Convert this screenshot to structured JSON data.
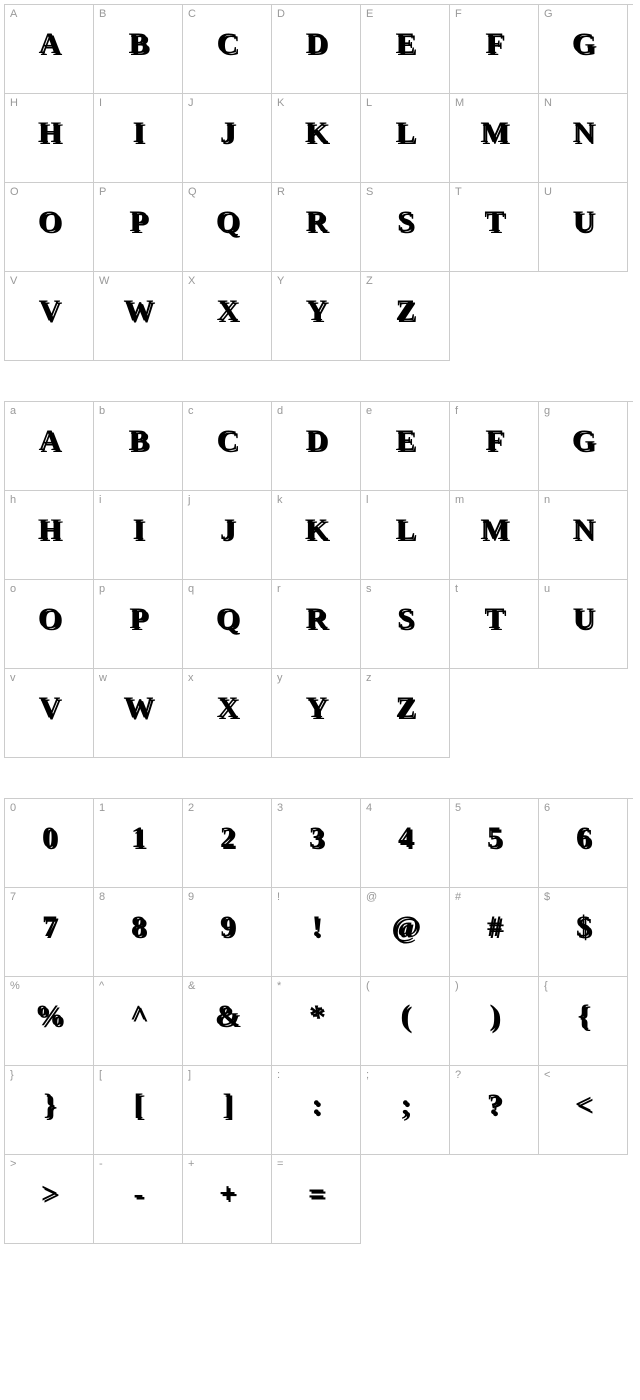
{
  "layout": {
    "cols": 7,
    "cell_size": 89,
    "border_color": "#cccccc",
    "label_color": "#999999",
    "label_fontsize": 11,
    "glyph_fontsize": 30,
    "glyph_color": "#000000",
    "background": "#ffffff"
  },
  "sections": [
    {
      "name": "uppercase",
      "cells": [
        {
          "label": "A",
          "glyph": "A"
        },
        {
          "label": "B",
          "glyph": "B"
        },
        {
          "label": "C",
          "glyph": "C"
        },
        {
          "label": "D",
          "glyph": "D"
        },
        {
          "label": "E",
          "glyph": "E"
        },
        {
          "label": "F",
          "glyph": "F"
        },
        {
          "label": "G",
          "glyph": "G"
        },
        {
          "label": "H",
          "glyph": "H"
        },
        {
          "label": "I",
          "glyph": "I"
        },
        {
          "label": "J",
          "glyph": "J"
        },
        {
          "label": "K",
          "glyph": "K"
        },
        {
          "label": "L",
          "glyph": "L"
        },
        {
          "label": "M",
          "glyph": "M"
        },
        {
          "label": "N",
          "glyph": "N"
        },
        {
          "label": "O",
          "glyph": "O"
        },
        {
          "label": "P",
          "glyph": "P"
        },
        {
          "label": "Q",
          "glyph": "Q"
        },
        {
          "label": "R",
          "glyph": "R"
        },
        {
          "label": "S",
          "glyph": "S"
        },
        {
          "label": "T",
          "glyph": "T"
        },
        {
          "label": "U",
          "glyph": "U"
        },
        {
          "label": "V",
          "glyph": "V"
        },
        {
          "label": "W",
          "glyph": "W"
        },
        {
          "label": "X",
          "glyph": "X"
        },
        {
          "label": "Y",
          "glyph": "Y"
        },
        {
          "label": "Z",
          "glyph": "Z"
        }
      ]
    },
    {
      "name": "lowercase",
      "cells": [
        {
          "label": "a",
          "glyph": "A"
        },
        {
          "label": "b",
          "glyph": "B"
        },
        {
          "label": "c",
          "glyph": "C"
        },
        {
          "label": "d",
          "glyph": "D"
        },
        {
          "label": "e",
          "glyph": "E"
        },
        {
          "label": "f",
          "glyph": "F"
        },
        {
          "label": "g",
          "glyph": "G"
        },
        {
          "label": "h",
          "glyph": "H"
        },
        {
          "label": "i",
          "glyph": "I"
        },
        {
          "label": "j",
          "glyph": "J"
        },
        {
          "label": "k",
          "glyph": "K"
        },
        {
          "label": "l",
          "glyph": "L"
        },
        {
          "label": "m",
          "glyph": "M"
        },
        {
          "label": "n",
          "glyph": "N"
        },
        {
          "label": "o",
          "glyph": "O"
        },
        {
          "label": "p",
          "glyph": "P"
        },
        {
          "label": "q",
          "glyph": "Q"
        },
        {
          "label": "r",
          "glyph": "R"
        },
        {
          "label": "s",
          "glyph": "S"
        },
        {
          "label": "t",
          "glyph": "T"
        },
        {
          "label": "u",
          "glyph": "U"
        },
        {
          "label": "v",
          "glyph": "V"
        },
        {
          "label": "w",
          "glyph": "W"
        },
        {
          "label": "x",
          "glyph": "X"
        },
        {
          "label": "y",
          "glyph": "Y"
        },
        {
          "label": "z",
          "glyph": "Z"
        }
      ]
    },
    {
      "name": "numbers-symbols",
      "cells": [
        {
          "label": "0",
          "glyph": "0"
        },
        {
          "label": "1",
          "glyph": "1"
        },
        {
          "label": "2",
          "glyph": "2"
        },
        {
          "label": "3",
          "glyph": "3"
        },
        {
          "label": "4",
          "glyph": "4"
        },
        {
          "label": "5",
          "glyph": "5"
        },
        {
          "label": "6",
          "glyph": "6"
        },
        {
          "label": "7",
          "glyph": "7"
        },
        {
          "label": "8",
          "glyph": "8"
        },
        {
          "label": "9",
          "glyph": "9"
        },
        {
          "label": "!",
          "glyph": "!"
        },
        {
          "label": "@",
          "glyph": "@"
        },
        {
          "label": "#",
          "glyph": "#"
        },
        {
          "label": "$",
          "glyph": "$"
        },
        {
          "label": "%",
          "glyph": "%"
        },
        {
          "label": "^",
          "glyph": "^"
        },
        {
          "label": "&",
          "glyph": "&"
        },
        {
          "label": "*",
          "glyph": "*"
        },
        {
          "label": "(",
          "glyph": "("
        },
        {
          "label": ")",
          "glyph": ")"
        },
        {
          "label": "{",
          "glyph": "{"
        },
        {
          "label": "}",
          "glyph": "}"
        },
        {
          "label": "[",
          "glyph": "["
        },
        {
          "label": "]",
          "glyph": "]"
        },
        {
          "label": ":",
          "glyph": ":"
        },
        {
          "label": ";",
          "glyph": ";"
        },
        {
          "label": "?",
          "glyph": "?"
        },
        {
          "label": "<",
          "glyph": "<"
        },
        {
          "label": ">",
          "glyph": ">"
        },
        {
          "label": "-",
          "glyph": "-"
        },
        {
          "label": "+",
          "glyph": "+"
        },
        {
          "label": "=",
          "glyph": "="
        }
      ]
    }
  ]
}
